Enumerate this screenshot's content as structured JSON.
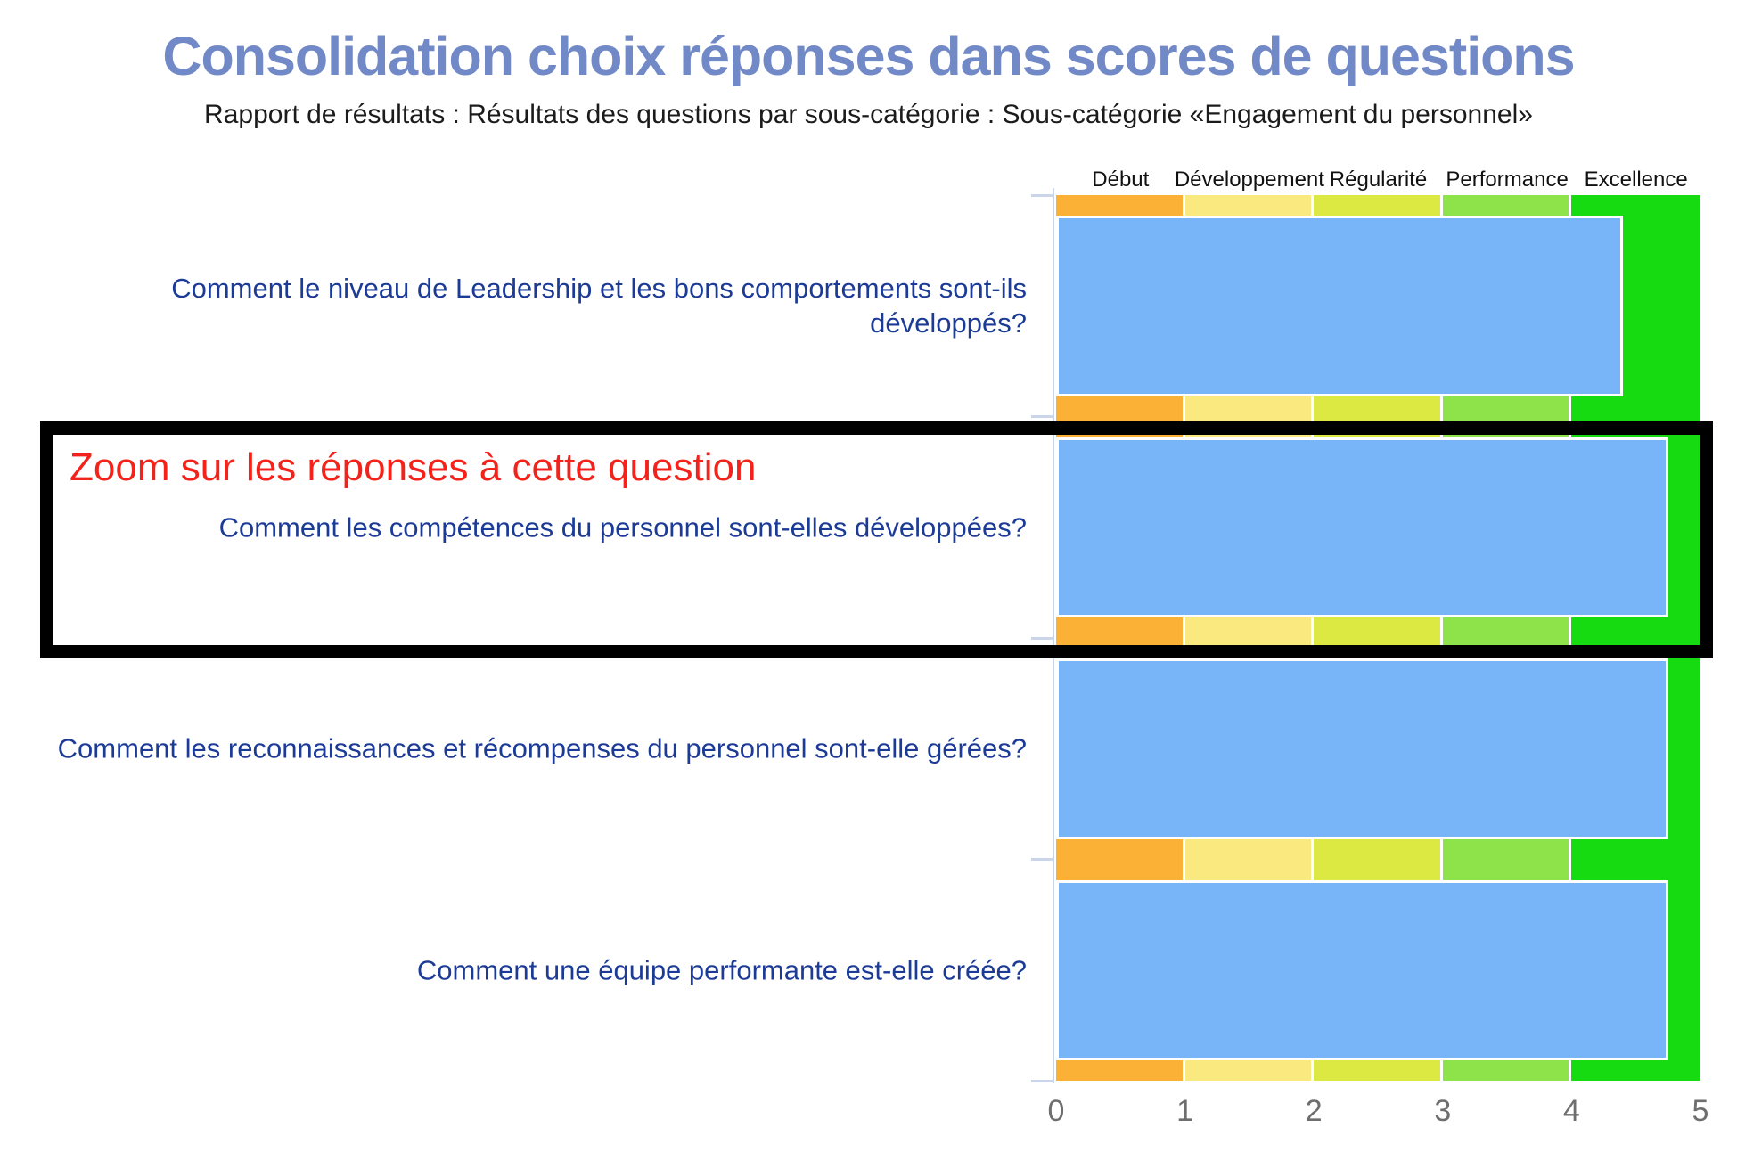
{
  "title": "Consolidation choix réponses dans scores de questions",
  "subtitle": "Rapport de résultats : Résultats des questions par sous-catégorie : Sous-catégorie «Engagement du personnel»",
  "zoom_note": "Zoom sur les réponses à cette question",
  "chart_data": {
    "type": "bar",
    "orientation": "horizontal",
    "categories": [
      "Comment le niveau de Leadership et les bons comportements sont-ils développés?",
      "Comment les compétences du personnel sont-elles développées?",
      "Comment les reconnaissances et récompenses du personnel sont-elle gérées?",
      "Comment une équipe performante est-elle créée?"
    ],
    "values": [
      4.4,
      4.75,
      4.75,
      4.75
    ],
    "xlim": [
      0,
      5
    ],
    "x_ticks": [
      "0",
      "1",
      "2",
      "3",
      "4",
      "5"
    ],
    "bar_color": "#77B5F8",
    "bar_border_color": "#FFFFFF",
    "highlighted_category_index": 1,
    "zones": [
      {
        "label": "Début",
        "range": [
          0,
          1
        ],
        "color": "#FBB136"
      },
      {
        "label": "Développement",
        "range": [
          1,
          2
        ],
        "color": "#FAE97E"
      },
      {
        "label": "Régularité",
        "range": [
          2,
          3
        ],
        "color": "#DCE943"
      },
      {
        "label": "Performance",
        "range": [
          3,
          4
        ],
        "color": "#8FE34A"
      },
      {
        "label": "Excellence",
        "range": [
          4,
          5
        ],
        "color": "#16DB10"
      }
    ],
    "legend_position": "top",
    "grid": false
  },
  "colors": {
    "title": "#7189C6",
    "subtitle": "#1B1B1B",
    "question": "#1C3B96",
    "zoom_note": "#F3231C",
    "highlight_border": "#000000",
    "axis": "#CBD5EA",
    "axis_label": "#6E6E6E",
    "zone_label": "#111111",
    "background": "#FFFFFF"
  }
}
